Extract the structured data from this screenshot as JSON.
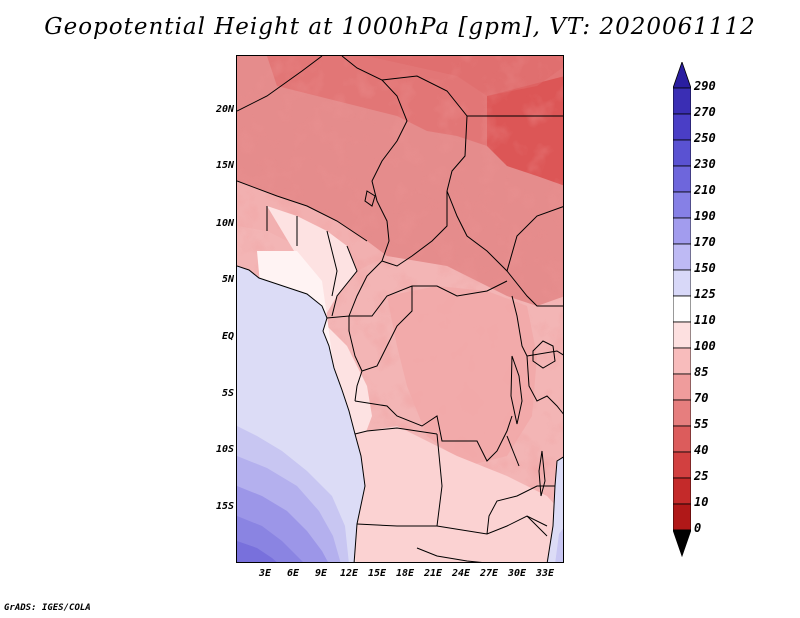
{
  "title": "Geopotential Height at 1000hPa [gpm], VT: 2020061112",
  "credit": "GrADS: IGES/COLA",
  "map": {
    "variable": "Geopotential Height",
    "level": "1000hPa",
    "units": "gpm",
    "valid_time": "2020061112",
    "lat_labels": [
      "20N",
      "15N",
      "10N",
      "5N",
      "EQ",
      "5S",
      "10S",
      "15S"
    ],
    "lon_labels": [
      "3E",
      "6E",
      "9E",
      "12E",
      "15E",
      "18E",
      "21E",
      "24E",
      "27E",
      "30E",
      "33E"
    ]
  },
  "colorbar": {
    "labels": [
      "290",
      "270",
      "250",
      "230",
      "210",
      "190",
      "170",
      "150",
      "125",
      "110",
      "100",
      "85",
      "70",
      "55",
      "40",
      "25",
      "10",
      "0"
    ],
    "colors": [
      "#2a1ea0",
      "#3a2eb4",
      "#4a3ec6",
      "#5a52d2",
      "#6e66dc",
      "#8680e6",
      "#a29cee",
      "#bebaf4",
      "#d8d8f8",
      "#ffffff",
      "#fde0e0",
      "#f8bcbc",
      "#ef9c9c",
      "#e67e7e",
      "#dc5c5c",
      "#d24040",
      "#c42a2a",
      "#b01818"
    ]
  }
}
